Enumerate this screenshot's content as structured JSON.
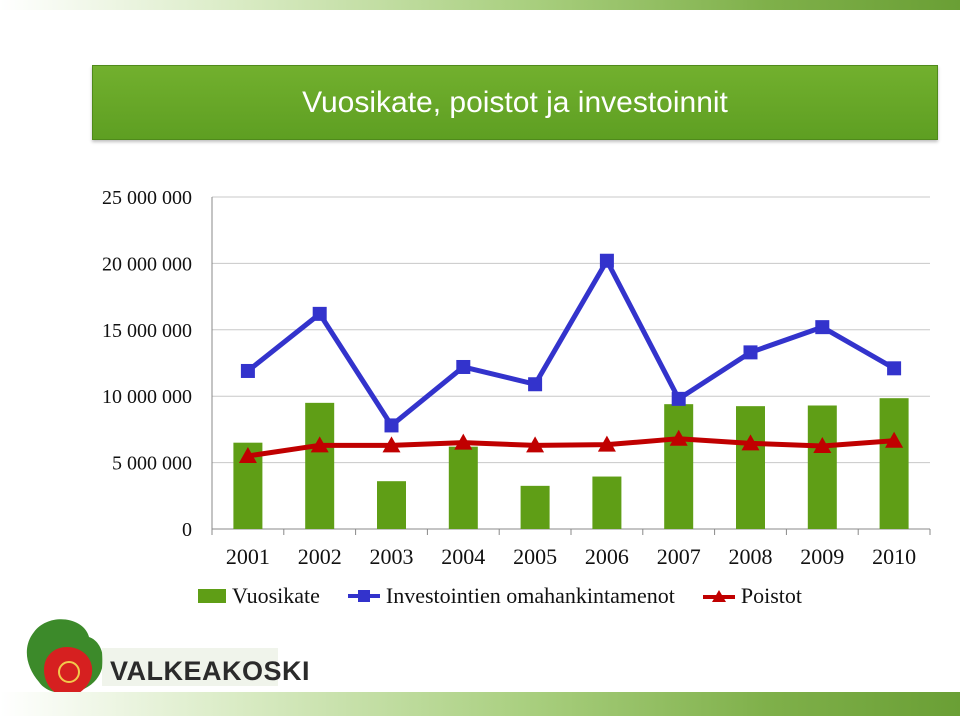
{
  "title": "Vuosikate, poistot ja investoinnit",
  "logo": {
    "text": "VALKEAKOSKI"
  },
  "colors": {
    "banner": "#64a326",
    "bar": "#5f9e16",
    "line_investment": "#3333cc",
    "line_poistot": "#c00000"
  },
  "chart_data": {
    "type": "bar",
    "title": "",
    "xlabel": "",
    "ylabel": "",
    "categories": [
      "2001",
      "2002",
      "2003",
      "2004",
      "2005",
      "2006",
      "2007",
      "2008",
      "2009",
      "2010"
    ],
    "ylim": [
      0,
      25000000
    ],
    "yticks": [
      0,
      5000000,
      10000000,
      15000000,
      20000000,
      25000000
    ],
    "ytick_labels": [
      "0",
      "5 000 000",
      "10 000 000",
      "15 000 000",
      "20 000 000",
      "25 000 000"
    ],
    "grid": true,
    "legend_position": "bottom",
    "series": [
      {
        "name": "Vuosikate",
        "type": "bar",
        "values": [
          6500000,
          9500000,
          3600000,
          6200000,
          3250000,
          3950000,
          9400000,
          9250000,
          9300000,
          9850000
        ]
      },
      {
        "name": "Investointien omahankintamenot",
        "type": "line",
        "marker": "square",
        "values": [
          11900000,
          16200000,
          7800000,
          12200000,
          10900000,
          20200000,
          9800000,
          13300000,
          15200000,
          12100000
        ]
      },
      {
        "name": "Poistot",
        "type": "line",
        "marker": "triangle",
        "values": [
          5500000,
          6300000,
          6300000,
          6500000,
          6300000,
          6350000,
          6800000,
          6450000,
          6250000,
          6650000
        ]
      }
    ]
  }
}
